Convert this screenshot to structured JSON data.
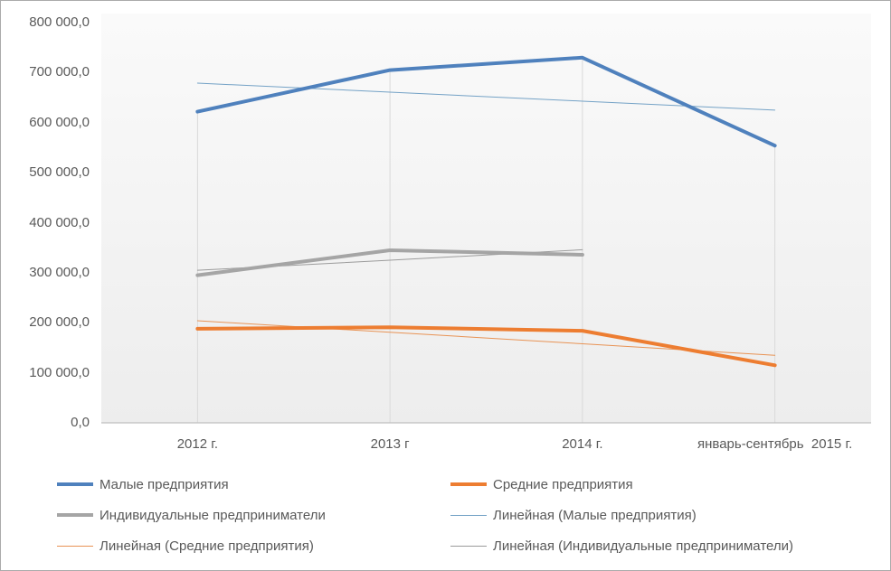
{
  "chart_data": {
    "type": "line",
    "title": "",
    "categories": [
      "2012 г.",
      "2013 г",
      "2014 г.",
      "январь-сентябрь  2015 г."
    ],
    "y_axis": {
      "min": 0,
      "max": 800000,
      "tick_step": 100000,
      "tick_labels": [
        "0,0",
        "100 000,0",
        "200 000,0",
        "300 000,0",
        "400 000,0",
        "500 000,0",
        "600 000,0",
        "700 000,0",
        "800 000,0"
      ]
    },
    "series": [
      {
        "name": "Малые предприятия",
        "color": "#4f81bd",
        "stroke_width": 4,
        "values": [
          622000,
          705000,
          730000,
          554000
        ]
      },
      {
        "name": "Средние предприятия",
        "color": "#ed7d31",
        "stroke_width": 4,
        "values": [
          188000,
          191000,
          184000,
          115000
        ]
      },
      {
        "name": "Индивидуальные предприниматели",
        "color": "#a5a5a5",
        "stroke_width": 4,
        "values": [
          295000,
          345000,
          336000
        ]
      },
      {
        "name": "Линейная (Малые предприятия)",
        "color": "#74a2c6",
        "stroke_width": 1,
        "trendline_of": "Малые предприятия",
        "values": [
          679000,
          661000,
          643000,
          625000
        ]
      },
      {
        "name": "Линейная (Средние предприятия)",
        "color": "#e89355",
        "stroke_width": 1,
        "trendline_of": "Средние предприятия",
        "values": [
          204000,
          181000,
          158000,
          135000
        ]
      },
      {
        "name": "Линейная (Индивидуальные предприниматели)",
        "color": "#9b9b9b",
        "stroke_width": 1,
        "trendline_of": "Индивидуальные предприниматели",
        "values": [
          305000,
          325000,
          346000
        ]
      }
    ],
    "legend_columns": [
      [
        0,
        2,
        4
      ],
      [
        1,
        3,
        5
      ]
    ],
    "legend_position": "bottom",
    "grid": "vertical drop lines at each category",
    "colors": {
      "axis_text": "#595959",
      "axis_line": "#bfbfbf",
      "drop_line": "#d9d9d9",
      "frame_border": "#ababab",
      "plot_fill_top": "#fafafa",
      "plot_fill_bottom": "#ededed"
    }
  }
}
